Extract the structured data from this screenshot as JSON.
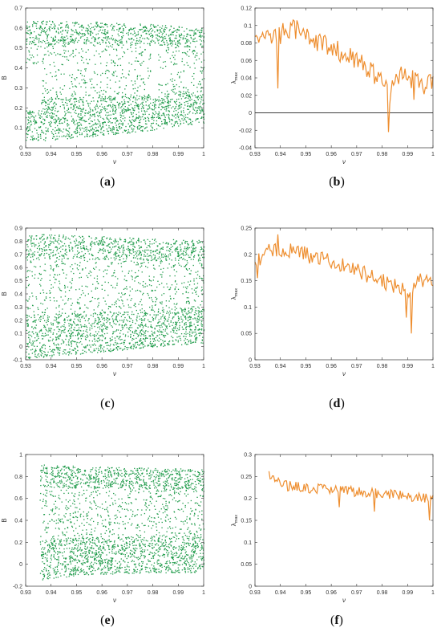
{
  "colors": {
    "bifurcation": "#1f9b4a",
    "lyapunov": "#ee8e2f",
    "axis": "#333333"
  },
  "captions": [
    "a",
    "b",
    "c",
    "d",
    "e",
    "f"
  ],
  "chart_data": [
    {
      "id": "a",
      "type": "scatter",
      "xlabel": "ν",
      "ylabel": "B",
      "xlim": [
        0.93,
        1.0
      ],
      "ylim": [
        0,
        0.7
      ],
      "xticks": [
        0.93,
        0.94,
        0.95,
        0.96,
        0.97,
        0.98,
        0.99,
        1
      ],
      "xtick_labels": [
        "0.93",
        "0.94",
        "0.95",
        "0.96",
        "0.97",
        "0.98",
        "0.99",
        "1"
      ],
      "yticks": [
        0,
        0.1,
        0.2,
        0.3,
        0.4,
        0.5,
        0.6,
        0.7
      ],
      "ytick_labels": [
        "0",
        "0.1",
        "0.2",
        "0.3",
        "0.4",
        "0.5",
        "0.6",
        "0.7"
      ],
      "upper_envelope": [
        [
          0.93,
          0.64
        ],
        [
          0.95,
          0.635
        ],
        [
          0.97,
          0.625
        ],
        [
          0.98,
          0.62
        ],
        [
          0.99,
          0.61
        ],
        [
          1.0,
          0.6
        ]
      ],
      "lower_envelope": [
        [
          0.93,
          0.03
        ],
        [
          0.95,
          0.05
        ],
        [
          0.97,
          0.07
        ],
        [
          0.98,
          0.09
        ],
        [
          0.99,
          0.11
        ],
        [
          1.0,
          0.12
        ]
      ],
      "gaps": [
        [
          0.93,
          0.936,
          0.19,
          0.4
        ],
        [
          0.979,
          0.982,
          0.25,
          0.52
        ]
      ]
    },
    {
      "id": "b",
      "type": "line",
      "xlabel": "ν",
      "ylabel": "λmax",
      "xlim": [
        0.93,
        1.0
      ],
      "ylim": [
        -0.04,
        0.12
      ],
      "xticks": [
        0.93,
        0.94,
        0.95,
        0.96,
        0.97,
        0.98,
        0.99,
        1
      ],
      "xtick_labels": [
        "0.93",
        "0.94",
        "0.95",
        "0.96",
        "0.97",
        "0.98",
        "0.99",
        "1"
      ],
      "yticks": [
        -0.04,
        -0.02,
        0,
        0.02,
        0.04,
        0.06,
        0.08,
        0.1,
        0.12
      ],
      "ytick_labels": [
        "-0.04",
        "-0.02",
        "0",
        "0.02",
        "0.04",
        "0.06",
        "0.08",
        "0.1",
        "0.12"
      ],
      "zero_line": true,
      "trend": [
        [
          0.93,
          0.085
        ],
        [
          0.94,
          0.09
        ],
        [
          0.945,
          0.097
        ],
        [
          0.95,
          0.088
        ],
        [
          0.96,
          0.075
        ],
        [
          0.97,
          0.06
        ],
        [
          0.975,
          0.05
        ],
        [
          0.98,
          0.035
        ],
        [
          0.983,
          0.02
        ],
        [
          0.986,
          0.045
        ],
        [
          0.99,
          0.042
        ],
        [
          0.995,
          0.03
        ],
        [
          1.0,
          0.04
        ]
      ],
      "noise": 0.012,
      "dips": [
        [
          0.939,
          0.028
        ],
        [
          0.9825,
          -0.022
        ],
        [
          0.9925,
          0.015
        ]
      ]
    },
    {
      "id": "c",
      "type": "scatter",
      "xlabel": "ν",
      "ylabel": "B",
      "xlim": [
        0.93,
        1.0
      ],
      "ylim": [
        -0.1,
        0.9
      ],
      "xticks": [
        0.93,
        0.94,
        0.95,
        0.96,
        0.97,
        0.98,
        0.99,
        1
      ],
      "xtick_labels": [
        "0.93",
        "0.94",
        "0.95",
        "0.96",
        "0.97",
        "0.98",
        "0.99",
        "1"
      ],
      "yticks": [
        -0.1,
        0,
        0.1,
        0.2,
        0.3,
        0.4,
        0.5,
        0.6,
        0.7,
        0.8,
        0.9
      ],
      "ytick_labels": [
        "-0.1",
        "0",
        "0.1",
        "0.2",
        "0.3",
        "0.4",
        "0.5",
        "0.6",
        "0.7",
        "0.8",
        "0.9"
      ],
      "upper_envelope": [
        [
          0.93,
          0.86
        ],
        [
          0.96,
          0.84
        ],
        [
          0.98,
          0.82
        ],
        [
          1.0,
          0.81
        ]
      ],
      "lower_envelope": [
        [
          0.93,
          -0.09
        ],
        [
          0.96,
          -0.04
        ],
        [
          0.98,
          0.0
        ],
        [
          1.0,
          0.03
        ]
      ],
      "gaps": []
    },
    {
      "id": "d",
      "type": "line",
      "xlabel": "ν",
      "ylabel": "λmax",
      "xlim": [
        0.93,
        1.0
      ],
      "ylim": [
        0,
        0.25
      ],
      "xticks": [
        0.93,
        0.94,
        0.95,
        0.96,
        0.97,
        0.98,
        0.99,
        1
      ],
      "xtick_labels": [
        "0.93",
        "0.94",
        "0.95",
        "0.96",
        "0.97",
        "0.98",
        "0.99",
        "1"
      ],
      "yticks": [
        0,
        0.05,
        0.1,
        0.15,
        0.2,
        0.25
      ],
      "ytick_labels": [
        "0",
        "0.05",
        "0.1",
        "0.15",
        "0.2",
        "0.25"
      ],
      "zero_line": false,
      "trend": [
        [
          0.93,
          0.18
        ],
        [
          0.935,
          0.205
        ],
        [
          0.94,
          0.21
        ],
        [
          0.95,
          0.2
        ],
        [
          0.96,
          0.185
        ],
        [
          0.97,
          0.17
        ],
        [
          0.98,
          0.15
        ],
        [
          0.99,
          0.13
        ],
        [
          0.995,
          0.15
        ],
        [
          1.0,
          0.15
        ]
      ],
      "noise": 0.015,
      "dips": [
        [
          0.939,
          0.238
        ],
        [
          0.9915,
          0.05
        ],
        [
          0.9895,
          0.08
        ],
        [
          0.931,
          0.155
        ]
      ]
    },
    {
      "id": "e",
      "type": "scatter",
      "xlabel": "ν",
      "ylabel": "B",
      "xlim": [
        0.93,
        1.0
      ],
      "ylim": [
        -0.2,
        1.0
      ],
      "xticks": [
        0.93,
        0.94,
        0.95,
        0.96,
        0.97,
        0.98,
        0.99,
        1
      ],
      "xtick_labels": [
        "0.93",
        "0.94",
        "0.95",
        "0.96",
        "0.97",
        "0.98",
        "0.99",
        "1"
      ],
      "yticks": [
        -0.2,
        0,
        0.2,
        0.4,
        0.6,
        0.8,
        1
      ],
      "ytick_labels": [
        "-0.2",
        "0",
        "0.2",
        "0.4",
        "0.6",
        "0.8",
        "1"
      ],
      "x_start": 0.9355,
      "upper_envelope": [
        [
          0.9355,
          0.91
        ],
        [
          0.96,
          0.89
        ],
        [
          0.98,
          0.88
        ],
        [
          1.0,
          0.87
        ]
      ],
      "lower_envelope": [
        [
          0.9355,
          -0.14
        ],
        [
          0.95,
          -0.1
        ],
        [
          0.97,
          -0.08
        ],
        [
          1.0,
          -0.07
        ]
      ],
      "gaps": []
    },
    {
      "id": "f",
      "type": "line",
      "xlabel": "ν",
      "ylabel": "λmax",
      "xlim": [
        0.93,
        1.0
      ],
      "ylim": [
        0,
        0.3
      ],
      "xticks": [
        0.93,
        0.94,
        0.95,
        0.96,
        0.97,
        0.98,
        0.99,
        1
      ],
      "xtick_labels": [
        "0.93",
        "0.94",
        "0.95",
        "0.96",
        "0.97",
        "0.98",
        "0.99",
        "1"
      ],
      "yticks": [
        0,
        0.05,
        0.1,
        0.15,
        0.2,
        0.25,
        0.3
      ],
      "ytick_labels": [
        "0",
        "0.05",
        "0.1",
        "0.15",
        "0.2",
        "0.25",
        "0.3"
      ],
      "zero_line": false,
      "x_start": 0.9355,
      "trend": [
        [
          0.9355,
          0.255
        ],
        [
          0.94,
          0.23
        ],
        [
          0.95,
          0.225
        ],
        [
          0.96,
          0.22
        ],
        [
          0.97,
          0.215
        ],
        [
          0.98,
          0.21
        ],
        [
          0.99,
          0.205
        ],
        [
          1.0,
          0.2
        ]
      ],
      "noise": 0.012,
      "dips": [
        [
          0.9985,
          0.15
        ],
        [
          0.963,
          0.18
        ],
        [
          0.977,
          0.17
        ]
      ]
    }
  ]
}
